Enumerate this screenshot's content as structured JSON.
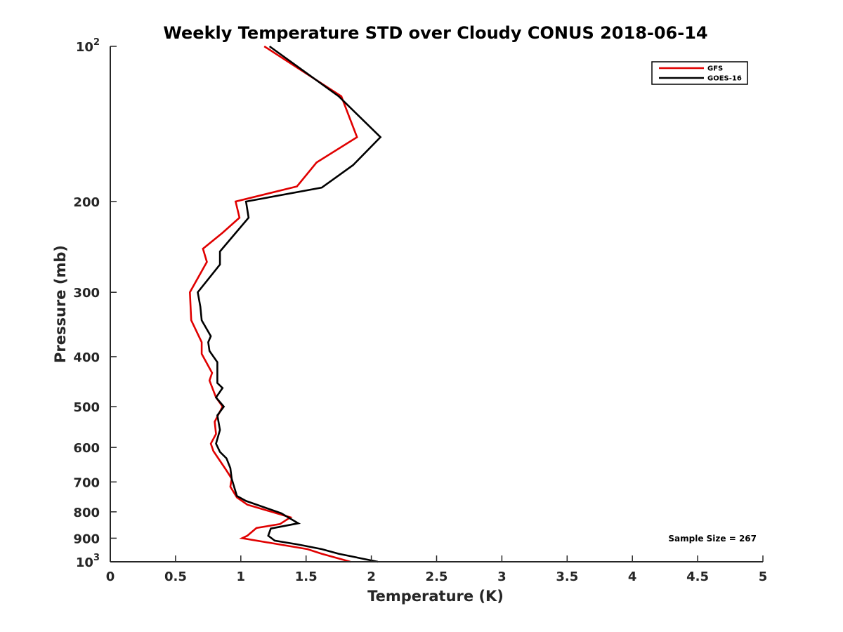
{
  "chart_data": {
    "type": "line",
    "title": "Weekly Temperature STD over Cloudy CONUS 2018-06-14",
    "xlabel": "Temperature (K)",
    "ylabel": "Pressure (mb)",
    "xlim": [
      0,
      5
    ],
    "ylim": [
      100,
      1000
    ],
    "yscale": "log",
    "yreversed": true,
    "grid": false,
    "legend_position": "top-right",
    "x_ticks": [
      {
        "value": 0,
        "label": "0"
      },
      {
        "value": 0.5,
        "label": "0.5"
      },
      {
        "value": 1,
        "label": "1"
      },
      {
        "value": 1.5,
        "label": "1.5"
      },
      {
        "value": 2,
        "label": "2"
      },
      {
        "value": 2.5,
        "label": "2.5"
      },
      {
        "value": 3,
        "label": "3"
      },
      {
        "value": 3.5,
        "label": "3.5"
      },
      {
        "value": 4,
        "label": "4"
      },
      {
        "value": 4.5,
        "label": "4.5"
      },
      {
        "value": 5,
        "label": "5"
      }
    ],
    "y_ticks": [
      {
        "value": 100,
        "base": "10",
        "exp": "2"
      },
      {
        "value": 200,
        "label": "200"
      },
      {
        "value": 300,
        "label": "300"
      },
      {
        "value": 400,
        "label": "400"
      },
      {
        "value": 500,
        "label": "500"
      },
      {
        "value": 600,
        "label": "600"
      },
      {
        "value": 700,
        "label": "700"
      },
      {
        "value": 800,
        "label": "800"
      },
      {
        "value": 900,
        "label": "900"
      },
      {
        "value": 1000,
        "base": "10",
        "exp": "3"
      }
    ],
    "annotation": "Sample Size = 267",
    "series": [
      {
        "name": "GFS",
        "color": "#e00000",
        "points": [
          [
            1.18,
            100
          ],
          [
            1.77,
            125
          ],
          [
            1.89,
            150
          ],
          [
            1.58,
            168
          ],
          [
            1.43,
            187
          ],
          [
            0.96,
            200
          ],
          [
            0.99,
            215
          ],
          [
            0.86,
            230
          ],
          [
            0.71,
            247
          ],
          [
            0.74,
            262
          ],
          [
            0.61,
            300
          ],
          [
            0.62,
            340
          ],
          [
            0.7,
            375
          ],
          [
            0.7,
            395
          ],
          [
            0.78,
            430
          ],
          [
            0.76,
            445
          ],
          [
            0.81,
            480
          ],
          [
            0.86,
            500
          ],
          [
            0.8,
            535
          ],
          [
            0.81,
            565
          ],
          [
            0.77,
            590
          ],
          [
            0.79,
            610
          ],
          [
            0.89,
            665
          ],
          [
            0.93,
            690
          ],
          [
            0.92,
            715
          ],
          [
            0.97,
            750
          ],
          [
            1.05,
            775
          ],
          [
            1.38,
            820
          ],
          [
            1.3,
            845
          ],
          [
            1.12,
            860
          ],
          [
            1.05,
            890
          ],
          [
            1.01,
            900
          ],
          [
            1.29,
            925
          ],
          [
            1.51,
            945
          ],
          [
            1.62,
            965
          ],
          [
            1.84,
            1000
          ]
        ]
      },
      {
        "name": "GOES-16",
        "color": "#000000",
        "points": [
          [
            1.22,
            100
          ],
          [
            1.75,
            125
          ],
          [
            2.07,
            150
          ],
          [
            1.86,
            170
          ],
          [
            1.62,
            188
          ],
          [
            1.04,
            200
          ],
          [
            1.06,
            215
          ],
          [
            0.84,
            250
          ],
          [
            0.84,
            265
          ],
          [
            0.67,
            300
          ],
          [
            0.69,
            320
          ],
          [
            0.7,
            340
          ],
          [
            0.77,
            365
          ],
          [
            0.75,
            375
          ],
          [
            0.76,
            390
          ],
          [
            0.82,
            410
          ],
          [
            0.82,
            450
          ],
          [
            0.86,
            460
          ],
          [
            0.81,
            480
          ],
          [
            0.87,
            500
          ],
          [
            0.82,
            520
          ],
          [
            0.84,
            555
          ],
          [
            0.81,
            590
          ],
          [
            0.84,
            612
          ],
          [
            0.89,
            630
          ],
          [
            0.92,
            658
          ],
          [
            0.93,
            690
          ],
          [
            0.97,
            745
          ],
          [
            1.04,
            762
          ],
          [
            1.31,
            805
          ],
          [
            1.44,
            842
          ],
          [
            1.23,
            862
          ],
          [
            1.21,
            890
          ],
          [
            1.26,
            910
          ],
          [
            1.43,
            925
          ],
          [
            1.48,
            930
          ],
          [
            1.62,
            945
          ],
          [
            1.75,
            965
          ],
          [
            2.05,
            1000
          ]
        ]
      }
    ]
  }
}
